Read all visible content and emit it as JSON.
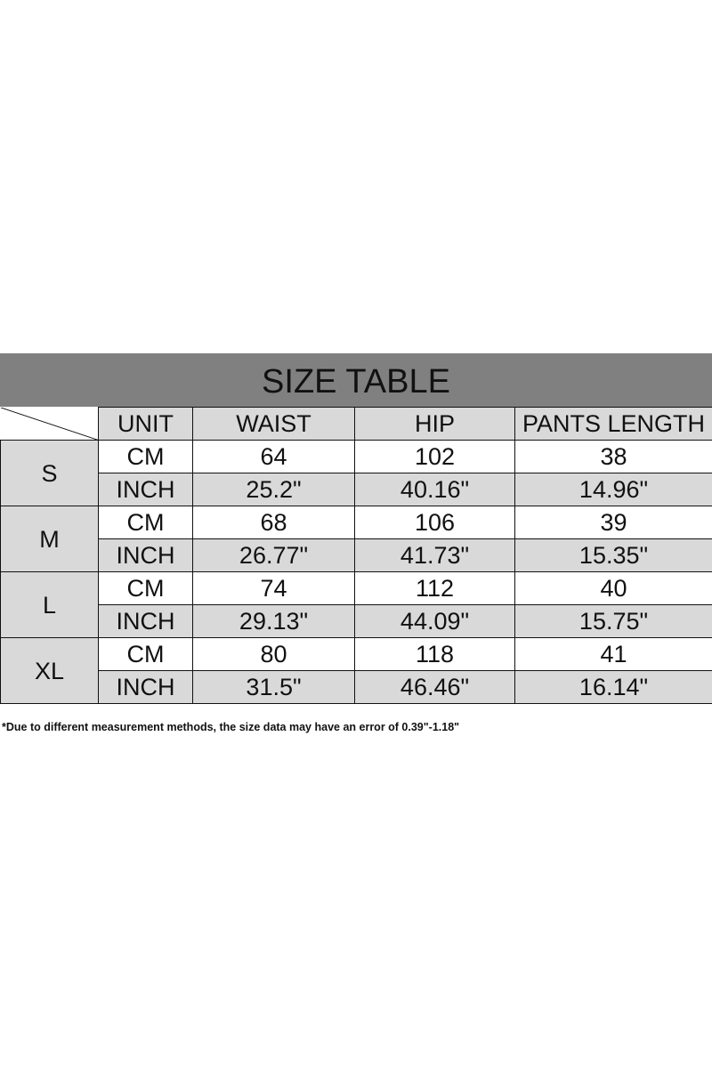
{
  "title": "SIZE TABLE",
  "headers": [
    "UNIT",
    "WAIST",
    "HIP",
    "PANTS LENGTH"
  ],
  "rows": [
    {
      "size": "S",
      "cm": {
        "unit": "CM",
        "waist": "64",
        "hip": "102",
        "length": "38"
      },
      "inch": {
        "unit": "INCH",
        "waist": "25.2\"",
        "hip": "40.16\"",
        "length": "14.96\""
      }
    },
    {
      "size": "M",
      "cm": {
        "unit": "CM",
        "waist": "68",
        "hip": "106",
        "length": "39"
      },
      "inch": {
        "unit": "INCH",
        "waist": "26.77\"",
        "hip": "41.73\"",
        "length": "15.35\""
      }
    },
    {
      "size": "L",
      "cm": {
        "unit": "CM",
        "waist": "74",
        "hip": "112",
        "length": "40"
      },
      "inch": {
        "unit": "INCH",
        "waist": "29.13\"",
        "hip": "44.09\"",
        "length": "15.75\""
      }
    },
    {
      "size": "XL",
      "cm": {
        "unit": "CM",
        "waist": "80",
        "hip": "118",
        "length": "41"
      },
      "inch": {
        "unit": "INCH",
        "waist": "31.5\"",
        "hip": "46.46\"",
        "length": "16.14\""
      }
    }
  ],
  "note": "*Due to different measurement methods, the size data may have an error of 0.39\"-1.18\""
}
